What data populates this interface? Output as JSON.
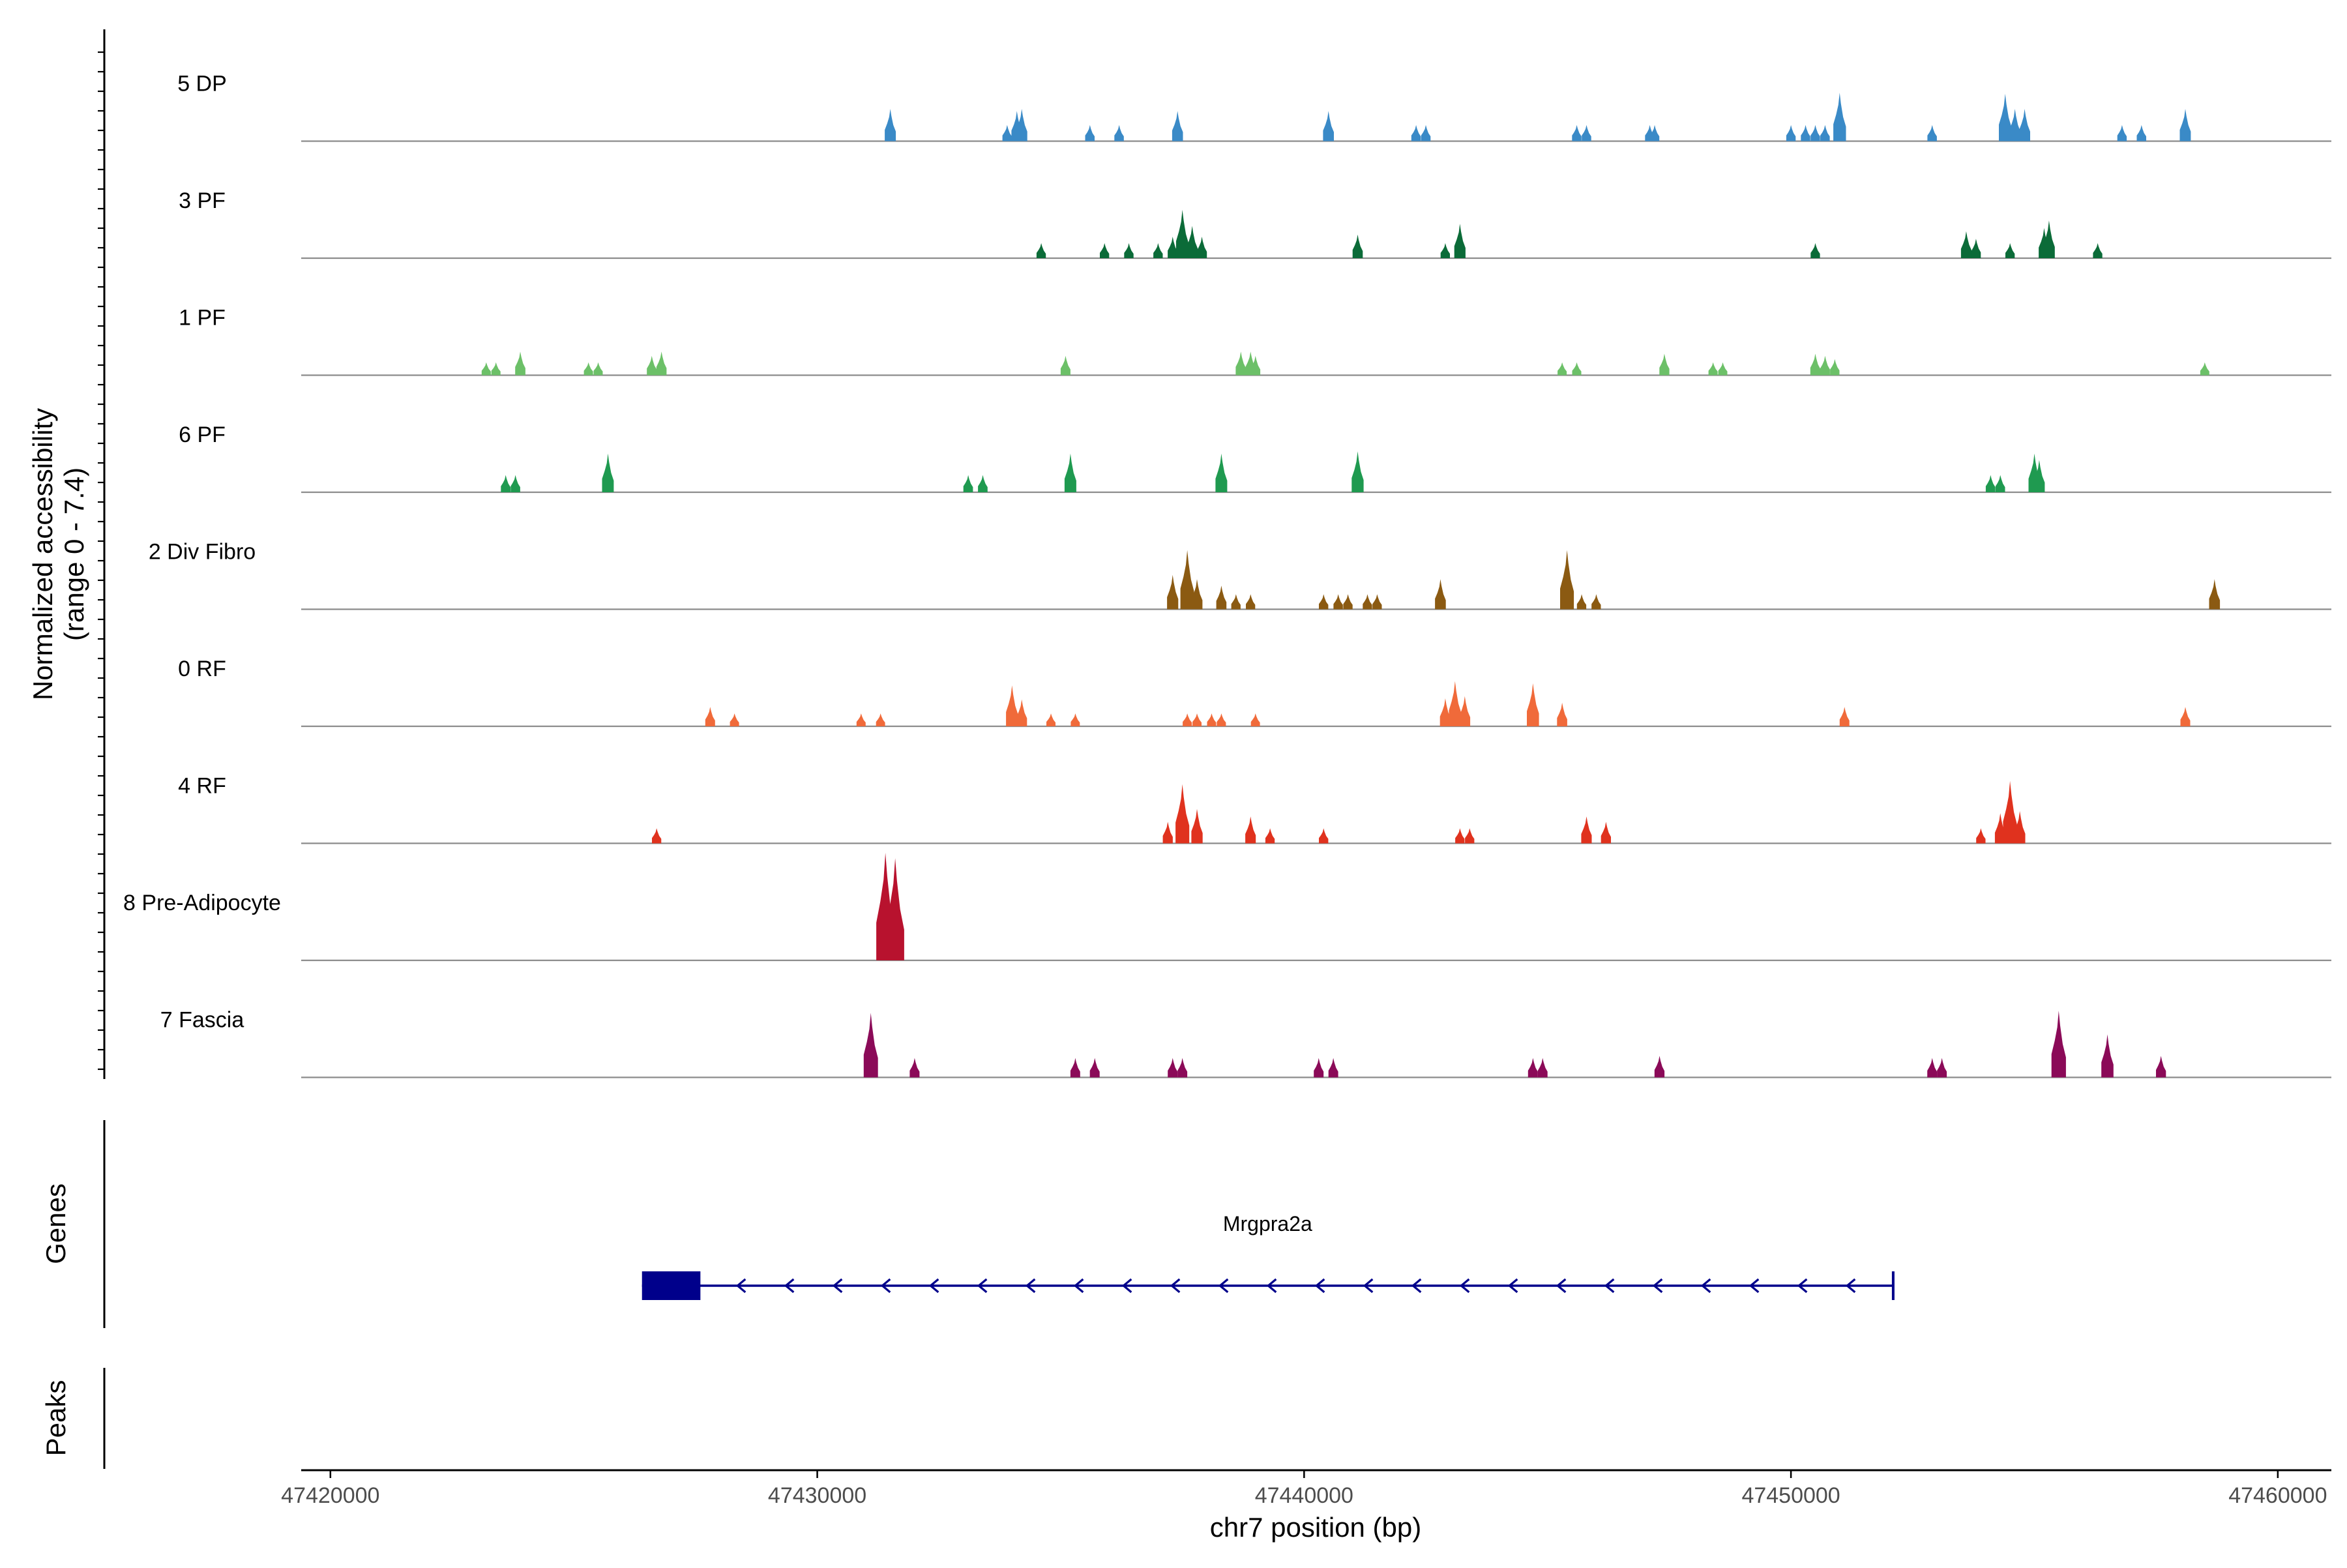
{
  "chart_data": {
    "type": "coverage-track",
    "title": "",
    "chromosome": "chr7",
    "xlabel": "chr7 position (bp)",
    "ylabel_line1": "Normalized accessibility",
    "ylabel_line2": "(range 0 - 7.4)",
    "y_range": [
      0,
      7.4
    ],
    "xlim": [
      47419400,
      47461100
    ],
    "x_ticks": [
      47420000,
      47430000,
      47440000,
      47450000,
      47460000
    ],
    "x_tick_labels": [
      "47420000",
      "47430000",
      "47440000",
      "47450000",
      "47460000"
    ],
    "section_labels": {
      "genes": "Genes",
      "peaks": "Peaks"
    },
    "tracks": [
      {
        "name": "5 DP",
        "color": "#3a8ac7",
        "peaks": [
          [
            47431500,
            0.3
          ],
          [
            47433900,
            0.15
          ],
          [
            47434100,
            0.28
          ],
          [
            47434200,
            0.3
          ],
          [
            47435600,
            0.15
          ],
          [
            47436200,
            0.15
          ],
          [
            47437400,
            0.28
          ],
          [
            47440500,
            0.28
          ],
          [
            47442300,
            0.15
          ],
          [
            47442500,
            0.15
          ],
          [
            47445600,
            0.15
          ],
          [
            47445800,
            0.15
          ],
          [
            47447100,
            0.15
          ],
          [
            47447200,
            0.15
          ],
          [
            47450000,
            0.15
          ],
          [
            47450300,
            0.15
          ],
          [
            47450500,
            0.15
          ],
          [
            47450700,
            0.15
          ],
          [
            47451000,
            0.45
          ],
          [
            47452900,
            0.15
          ],
          [
            47454400,
            0.44
          ],
          [
            47454600,
            0.3
          ],
          [
            47454800,
            0.3
          ],
          [
            47456800,
            0.15
          ],
          [
            47457200,
            0.15
          ],
          [
            47458100,
            0.3
          ]
        ]
      },
      {
        "name": "3 PF",
        "color": "#0b6b38",
        "peaks": [
          [
            47434600,
            0.14
          ],
          [
            47435900,
            0.14
          ],
          [
            47436400,
            0.14
          ],
          [
            47437000,
            0.14
          ],
          [
            47437300,
            0.2
          ],
          [
            47437500,
            0.45
          ],
          [
            47437700,
            0.3
          ],
          [
            47437900,
            0.2
          ],
          [
            47441100,
            0.22
          ],
          [
            47442900,
            0.14
          ],
          [
            47443200,
            0.32
          ],
          [
            47450500,
            0.14
          ],
          [
            47453600,
            0.25
          ],
          [
            47453800,
            0.18
          ],
          [
            47454500,
            0.14
          ],
          [
            47455200,
            0.28
          ],
          [
            47455300,
            0.35
          ],
          [
            47456300,
            0.14
          ]
        ]
      },
      {
        "name": "1 PF",
        "color": "#6cc068",
        "peaks": [
          [
            47423200,
            0.12
          ],
          [
            47423400,
            0.12
          ],
          [
            47423900,
            0.22
          ],
          [
            47425300,
            0.12
          ],
          [
            47425500,
            0.12
          ],
          [
            47426600,
            0.18
          ],
          [
            47426800,
            0.22
          ],
          [
            47435100,
            0.18
          ],
          [
            47438700,
            0.22
          ],
          [
            47438900,
            0.22
          ],
          [
            47439000,
            0.18
          ],
          [
            47445300,
            0.12
          ],
          [
            47445600,
            0.12
          ],
          [
            47447400,
            0.2
          ],
          [
            47448400,
            0.12
          ],
          [
            47448600,
            0.12
          ],
          [
            47450500,
            0.2
          ],
          [
            47450700,
            0.18
          ],
          [
            47450900,
            0.15
          ],
          [
            47458500,
            0.12
          ]
        ]
      },
      {
        "name": "6 PF",
        "color": "#1f9a50",
        "peaks": [
          [
            47423600,
            0.16
          ],
          [
            47423800,
            0.16
          ],
          [
            47425700,
            0.36
          ],
          [
            47433100,
            0.16
          ],
          [
            47433400,
            0.16
          ],
          [
            47435200,
            0.36
          ],
          [
            47438300,
            0.36
          ],
          [
            47441100,
            0.38
          ],
          [
            47454100,
            0.16
          ],
          [
            47454300,
            0.16
          ],
          [
            47455000,
            0.36
          ],
          [
            47455100,
            0.3
          ]
        ]
      },
      {
        "name": "2 Div Fibro",
        "color": "#8b5a12",
        "peaks": [
          [
            47437300,
            0.32
          ],
          [
            47437600,
            0.55
          ],
          [
            47437800,
            0.28
          ],
          [
            47438300,
            0.22
          ],
          [
            47438600,
            0.14
          ],
          [
            47438900,
            0.14
          ],
          [
            47440400,
            0.14
          ],
          [
            47440700,
            0.14
          ],
          [
            47440900,
            0.14
          ],
          [
            47441300,
            0.14
          ],
          [
            47441500,
            0.14
          ],
          [
            47442800,
            0.28
          ],
          [
            47445400,
            0.55
          ],
          [
            47445700,
            0.14
          ],
          [
            47446000,
            0.14
          ],
          [
            47458700,
            0.28
          ]
        ]
      },
      {
        "name": "0 RF",
        "color": "#f06a3a",
        "peaks": [
          [
            47427800,
            0.18
          ],
          [
            47428300,
            0.12
          ],
          [
            47430900,
            0.12
          ],
          [
            47431300,
            0.12
          ],
          [
            47434000,
            0.38
          ],
          [
            47434200,
            0.25
          ],
          [
            47434800,
            0.12
          ],
          [
            47435300,
            0.12
          ],
          [
            47437600,
            0.12
          ],
          [
            47437800,
            0.12
          ],
          [
            47438100,
            0.12
          ],
          [
            47438300,
            0.12
          ],
          [
            47439000,
            0.12
          ],
          [
            47442900,
            0.26
          ],
          [
            47443100,
            0.42
          ],
          [
            47443300,
            0.28
          ],
          [
            47444700,
            0.4
          ],
          [
            47445300,
            0.22
          ],
          [
            47451100,
            0.18
          ],
          [
            47458100,
            0.18
          ]
        ]
      },
      {
        "name": "4 RF",
        "color": "#e0321e",
        "peaks": [
          [
            47426700,
            0.14
          ],
          [
            47437200,
            0.2
          ],
          [
            47437500,
            0.55
          ],
          [
            47437800,
            0.32
          ],
          [
            47438900,
            0.25
          ],
          [
            47439300,
            0.14
          ],
          [
            47440400,
            0.14
          ],
          [
            47443200,
            0.14
          ],
          [
            47443400,
            0.14
          ],
          [
            47445800,
            0.25
          ],
          [
            47446200,
            0.2
          ],
          [
            47453900,
            0.14
          ],
          [
            47454300,
            0.28
          ],
          [
            47454500,
            0.58
          ],
          [
            47454700,
            0.3
          ]
        ]
      },
      {
        "name": "8 Pre-Adipocyte",
        "color": "#b8122e",
        "peaks": [
          [
            47431400,
            1.0
          ],
          [
            47431600,
            0.95
          ]
        ]
      },
      {
        "name": "7 Fascia",
        "color": "#8b0a58",
        "peaks": [
          [
            47431100,
            0.6
          ],
          [
            47432000,
            0.18
          ],
          [
            47435300,
            0.18
          ],
          [
            47435700,
            0.18
          ],
          [
            47437300,
            0.18
          ],
          [
            47437500,
            0.18
          ],
          [
            47440300,
            0.18
          ],
          [
            47440600,
            0.18
          ],
          [
            47444700,
            0.18
          ],
          [
            47444900,
            0.18
          ],
          [
            47447300,
            0.2
          ],
          [
            47452900,
            0.18
          ],
          [
            47453100,
            0.18
          ],
          [
            47455500,
            0.62
          ],
          [
            47456500,
            0.4
          ],
          [
            47457600,
            0.2
          ]
        ]
      }
    ],
    "genes": [
      {
        "name": "Mrgpra2a",
        "strand": "-",
        "start": 47426400,
        "end": 47452100,
        "exons": [
          [
            47426400,
            47427600
          ]
        ],
        "color": "#00008b"
      }
    ]
  }
}
